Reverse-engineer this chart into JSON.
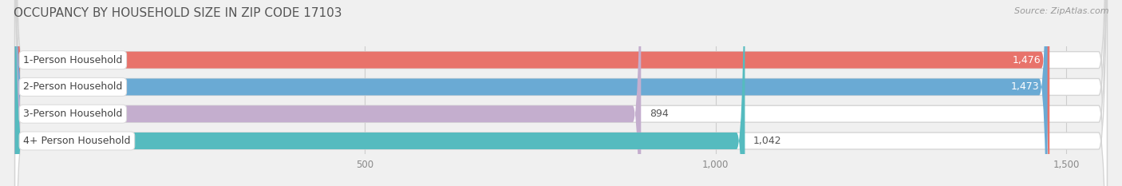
{
  "title": "OCCUPANCY BY HOUSEHOLD SIZE IN ZIP CODE 17103",
  "source": "Source: ZipAtlas.com",
  "categories": [
    "1-Person Household",
    "2-Person Household",
    "3-Person Household",
    "4+ Person Household"
  ],
  "values": [
    1476,
    1473,
    894,
    1042
  ],
  "bar_colors": [
    "#E8736B",
    "#6AAAD4",
    "#C4AECE",
    "#55BBBF"
  ],
  "xlim_max": 1560,
  "xticks": [
    500,
    1000,
    1500
  ],
  "background_color": "#f0f0f0",
  "bar_bg_color": "#e8e8e8",
  "bar_bg_border": "#d5d5d5",
  "title_color": "#555555",
  "source_color": "#999999",
  "label_fontsize": 9.0,
  "value_fontsize": 9.0,
  "title_fontsize": 11,
  "bar_height": 0.62,
  "fig_width": 14.06,
  "fig_height": 2.33,
  "value_threshold": 1100,
  "label_pill_color": "#ffffff",
  "label_pill_alpha": 1.0
}
